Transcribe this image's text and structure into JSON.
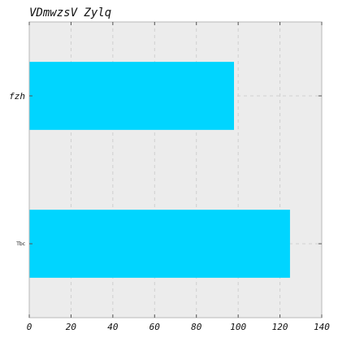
{
  "chart_data": {
    "type": "bar",
    "orientation": "horizontal",
    "title": "VDmwzsV Zylq",
    "xlabel": "",
    "ylabel": "",
    "categories": [
      "Tbc",
      "fzh"
    ],
    "values": [
      124.8,
      98.0
    ],
    "xlim": [
      0,
      140
    ],
    "xticks": [
      0,
      20,
      40,
      60,
      80,
      100,
      120,
      140
    ],
    "grid": true,
    "legend": "none",
    "colors": {
      "bar": "#00d5ff",
      "plot_bg": "#ececec",
      "grid": "#cfcfcf",
      "frame": "#b8b8b8"
    }
  }
}
